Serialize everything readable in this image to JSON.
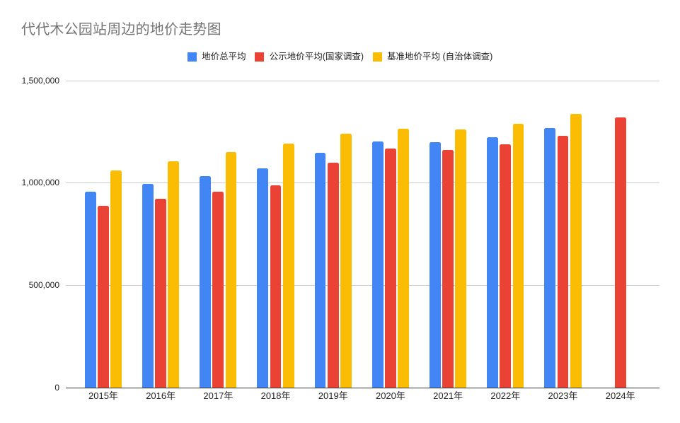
{
  "chart_data": {
    "type": "bar",
    "title": "代代木公园站周边的地价走势图",
    "title_color": "#757575",
    "background_color": "#ffffff",
    "categories": [
      "2015年",
      "2016年",
      "2017年",
      "2018年",
      "2019年",
      "2020年",
      "2021年",
      "2022年",
      "2023年",
      "2024年"
    ],
    "series": [
      {
        "name": "地价总平均",
        "color": "#4285F4",
        "values": [
          956000,
          996000,
          1034000,
          1071000,
          1147000,
          1202000,
          1197000,
          1224000,
          1266000,
          null
        ]
      },
      {
        "name": "公示地价平均(国家调查)",
        "color": "#EA4335",
        "values": [
          889000,
          922000,
          958000,
          989000,
          1098000,
          1169000,
          1159000,
          1189000,
          1229000,
          1318000
        ]
      },
      {
        "name": "基准地价平均 (自治体调查)",
        "color": "#FBBC04",
        "values": [
          1061000,
          1104000,
          1149000,
          1192000,
          1241000,
          1265000,
          1260000,
          1290000,
          1338000,
          null
        ]
      }
    ],
    "xlabel": "",
    "ylabel": "",
    "ylim": [
      0,
      1500000
    ],
    "yticks": [
      {
        "value": 0,
        "label": "0"
      },
      {
        "value": 500000,
        "label": "500,000"
      },
      {
        "value": 1000000,
        "label": "1,000,000"
      },
      {
        "value": 1500000,
        "label": "1,500,000"
      }
    ],
    "grid": true,
    "gridline_color": "#cccccc",
    "baseline_color": "#333333",
    "legend_position": "top"
  }
}
